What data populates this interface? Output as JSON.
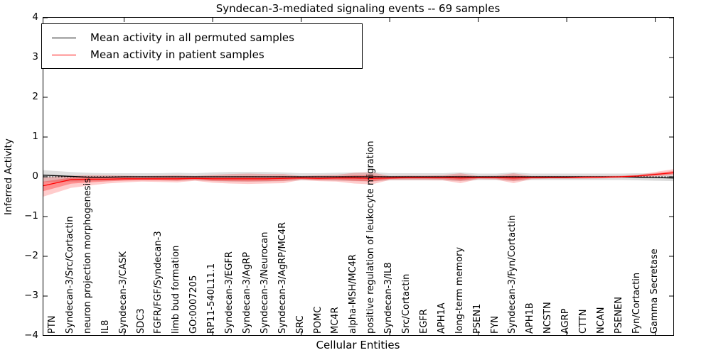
{
  "title": "Syndecan-3-mediated signaling events -- 69 samples",
  "chart_data": {
    "type": "line",
    "title": "Syndecan-3-mediated signaling events -- 69 samples",
    "xlabel": "Cellular Entities",
    "ylabel": "Inferred Activity",
    "ylim": [
      -4,
      4
    ],
    "yticks": [
      4,
      3,
      2,
      1,
      0,
      -1,
      -2,
      -3,
      -4
    ],
    "grid": false,
    "legend_position": "upper left",
    "zero_reference_line": "dotted",
    "categories": [
      "PTN",
      "Syndecan-3/Src/Cortactin",
      "neuron projection morphogenesis",
      "IL8",
      "Syndecan-3/CASK",
      "SDC3",
      "FGFR/FGF/Syndecan-3",
      "limb bud formation",
      "GO:0007205",
      "RP11-540L11.1",
      "Syndecan-3/EGFR",
      "Syndecan-3/AgRP",
      "Syndecan-3/Neurocan",
      "Syndecan-3/AgRP/MC4R",
      "SRC",
      "POMC",
      "MC4R",
      "alpha-MSH/MC4R",
      "positive regulation of leukocyte migration",
      "Syndecan-3/IL8",
      "Src/Cortactin",
      "EGFR",
      "APH1A",
      "long-term memory",
      "PSEN1",
      "FYN",
      "Syndecan-3/Fyn/Cortactin",
      "APH1B",
      "NCSTN",
      "AGRP",
      "CTTN",
      "NCAN",
      "PSENEN",
      "Fyn/Cortactin",
      "Gamma Secretase"
    ],
    "series": [
      {
        "name": "Mean activity in all permuted samples",
        "color": "#000000",
        "band_color": "rgba(0,0,0,0.13)",
        "values": [
          0.03,
          0.01,
          -0.01,
          -0.01,
          0,
          0,
          0,
          0,
          0,
          0,
          0,
          0,
          0,
          0,
          0,
          0,
          0,
          0,
          0,
          0,
          0,
          0,
          0,
          0,
          0,
          0,
          0,
          0,
          0,
          0,
          0,
          0,
          0,
          -0.01,
          -0.02
        ],
        "band_lo": [
          -0.13,
          -0.12,
          -0.11,
          -0.1,
          -0.09,
          -0.09,
          -0.09,
          -0.1,
          -0.09,
          -0.11,
          -0.12,
          -0.12,
          -0.12,
          -0.11,
          -0.09,
          -0.09,
          -0.1,
          -0.11,
          -0.12,
          -0.09,
          -0.09,
          -0.09,
          -0.09,
          -0.11,
          -0.08,
          -0.08,
          -0.11,
          -0.08,
          -0.08,
          -0.08,
          -0.08,
          -0.08,
          -0.08,
          -0.09,
          -0.1
        ],
        "band_hi": [
          0.15,
          0.12,
          0.1,
          0.09,
          0.09,
          0.09,
          0.09,
          0.1,
          0.09,
          0.11,
          0.12,
          0.12,
          0.12,
          0.11,
          0.09,
          0.09,
          0.1,
          0.11,
          0.12,
          0.09,
          0.09,
          0.09,
          0.09,
          0.11,
          0.08,
          0.08,
          0.11,
          0.08,
          0.08,
          0.08,
          0.08,
          0.08,
          0.08,
          0.09,
          0.08
        ]
      },
      {
        "name": "Mean activity in patient samples",
        "color": "#ff0000",
        "band_color": "rgba(255,0,0,0.20)",
        "inner_band_color": "rgba(255,0,0,0.30)",
        "values": [
          -0.17,
          -0.07,
          -0.06,
          -0.06,
          -0.05,
          -0.05,
          -0.05,
          -0.05,
          -0.04,
          -0.05,
          -0.05,
          -0.05,
          -0.05,
          -0.04,
          -0.03,
          -0.04,
          -0.03,
          -0.03,
          -0.04,
          -0.03,
          -0.02,
          -0.02,
          -0.02,
          -0.03,
          -0.02,
          -0.02,
          -0.03,
          -0.02,
          -0.02,
          -0.02,
          -0.01,
          -0.01,
          0.0,
          0.02,
          0.06
        ],
        "band_lo": [
          -0.42,
          -0.28,
          -0.22,
          -0.17,
          -0.14,
          -0.12,
          -0.13,
          -0.14,
          -0.1,
          -0.15,
          -0.17,
          -0.18,
          -0.17,
          -0.16,
          -0.08,
          -0.11,
          -0.12,
          -0.17,
          -0.19,
          -0.08,
          -0.08,
          -0.08,
          -0.09,
          -0.16,
          -0.06,
          -0.07,
          -0.16,
          -0.06,
          -0.05,
          -0.05,
          -0.05,
          -0.04,
          -0.03,
          -0.02,
          0.01
        ],
        "band_hi": [
          0.0,
          0.03,
          0.04,
          0.04,
          0.03,
          0.02,
          0.03,
          0.04,
          0.02,
          0.05,
          0.07,
          0.08,
          0.07,
          0.07,
          0.02,
          0.04,
          0.05,
          0.1,
          0.11,
          0.02,
          0.03,
          0.03,
          0.04,
          0.09,
          0.02,
          0.03,
          0.09,
          0.02,
          0.02,
          0.02,
          0.02,
          0.02,
          0.03,
          0.05,
          0.12
        ]
      }
    ]
  }
}
